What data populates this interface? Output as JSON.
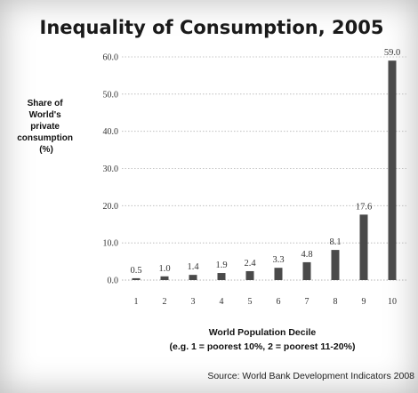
{
  "chart_data": {
    "type": "bar",
    "title": "Inequality of Consumption, 2005",
    "ylabel_lines": [
      "Share of",
      "World's",
      "private",
      "consumption",
      "(%)"
    ],
    "xlabel": "World Population Decile",
    "xlabel_note": "(e.g. 1 = poorest 10%, 2 = poorest 11-20%)",
    "source": "Source: World Bank Development Indicators 2008",
    "categories": [
      "1",
      "2",
      "3",
      "4",
      "5",
      "6",
      "7",
      "8",
      "9",
      "10"
    ],
    "values": [
      0.5,
      1.0,
      1.4,
      1.9,
      2.4,
      3.3,
      4.8,
      8.1,
      17.6,
      59.0
    ],
    "value_labels": [
      "0.5",
      "1.0",
      "1.4",
      "1.9",
      "2.4",
      "3.3",
      "4.8",
      "8.1",
      "17.6",
      "59.0"
    ],
    "yticks": [
      0,
      10,
      20,
      30,
      40,
      50,
      60
    ],
    "ytick_labels": [
      "0.0",
      "10.0",
      "20.0",
      "30.0",
      "40.0",
      "50.0",
      "60.0"
    ],
    "ylim": [
      0,
      60
    ],
    "grid": "horizontal-dotted",
    "legend": "none",
    "bar_color": "#4a4a4a"
  }
}
